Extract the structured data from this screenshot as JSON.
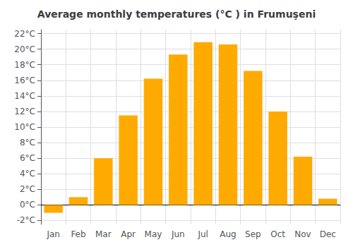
{
  "chart_data": {
    "type": "bar",
    "title": "Average monthly temperatures (°C ) in Frumuşeni",
    "categories": [
      "Jan",
      "Feb",
      "Mar",
      "Apr",
      "May",
      "Jun",
      "Jul",
      "Aug",
      "Sep",
      "Oct",
      "Nov",
      "Dec"
    ],
    "values": [
      -1.0,
      1.0,
      6.0,
      11.5,
      16.2,
      19.3,
      20.9,
      20.6,
      17.2,
      12.0,
      6.2,
      0.8
    ],
    "color": "#FFAA00",
    "ylim": [
      -2.5,
      22.5
    ],
    "yticks": [
      {
        "value": -2,
        "label": "-2°C"
      },
      {
        "value": 0,
        "label": "0°C"
      },
      {
        "value": 2,
        "label": "2°C"
      },
      {
        "value": 4,
        "label": "4°C"
      },
      {
        "value": 6,
        "label": "6°C"
      },
      {
        "value": 8,
        "label": "8°C"
      },
      {
        "value": 10,
        "label": "10°C"
      },
      {
        "value": 12,
        "label": "12°C"
      },
      {
        "value": 14,
        "label": "14°C"
      },
      {
        "value": 16,
        "label": "16°C"
      },
      {
        "value": 18,
        "label": "18°C"
      },
      {
        "value": 20,
        "label": "20°C"
      },
      {
        "value": 22,
        "label": "22°C"
      }
    ],
    "grid": true
  }
}
